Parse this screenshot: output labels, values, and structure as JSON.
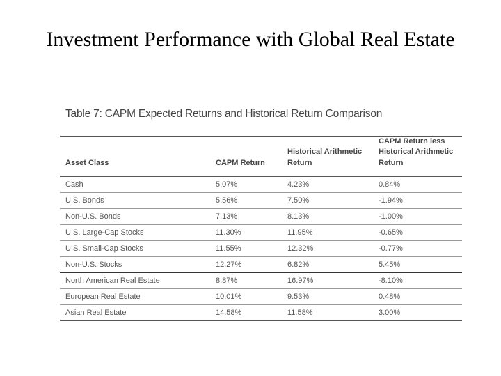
{
  "slide": {
    "title": "Investment Performance with Global Real Estate"
  },
  "table": {
    "caption": "Table 7: CAPM Expected Returns and Historical Return Comparison",
    "headers": {
      "asset_class": "Asset Class",
      "capm_return": "CAPM Return",
      "historical_arithmetic_return": [
        "Historical Arithmetic",
        "Return"
      ],
      "capm_less_historical": [
        "CAPM Return less",
        "Historical Arithmetic",
        "Return"
      ]
    },
    "rows": [
      {
        "asset_class": "Cash",
        "capm_return": "5.07%",
        "historical": "4.23%",
        "difference": "0.84%"
      },
      {
        "asset_class": "U.S. Bonds",
        "capm_return": "5.56%",
        "historical": "7.50%",
        "difference": "-1.94%"
      },
      {
        "asset_class": "Non-U.S. Bonds",
        "capm_return": "7.13%",
        "historical": "8.13%",
        "difference": "-1.00%"
      },
      {
        "asset_class": "U.S. Large-Cap Stocks",
        "capm_return": "11.30%",
        "historical": "11.95%",
        "difference": "-0.65%"
      },
      {
        "asset_class": "U.S. Small-Cap Stocks",
        "capm_return": "11.55%",
        "historical": "12.32%",
        "difference": "-0.77%"
      },
      {
        "asset_class": "Non-U.S. Stocks",
        "capm_return": "12.27%",
        "historical": "6.82%",
        "difference": "5.45%"
      },
      {
        "asset_class": "North American Real Estate",
        "capm_return": "8.87%",
        "historical": "16.97%",
        "difference": "-8.10%"
      },
      {
        "asset_class": "European Real Estate",
        "capm_return": "10.01%",
        "historical": "9.53%",
        "difference": "0.48%"
      },
      {
        "asset_class": "Asian Real Estate",
        "capm_return": "14.58%",
        "historical": "11.58%",
        "difference": "3.00%"
      }
    ]
  }
}
